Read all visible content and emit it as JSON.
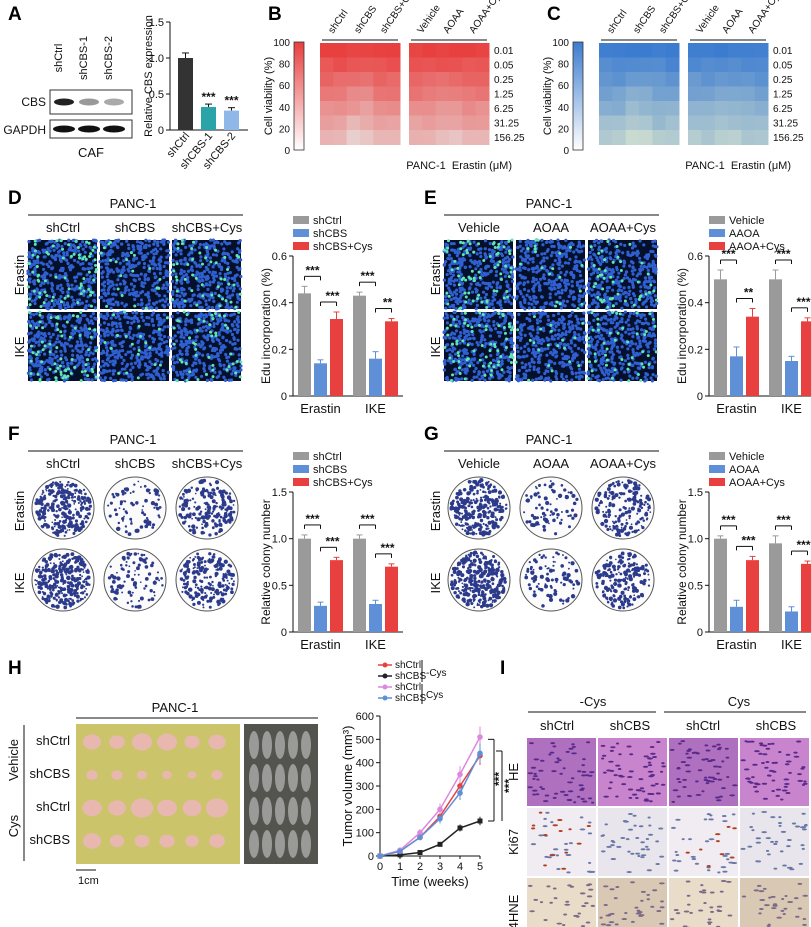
{
  "colors": {
    "ctrl": "#9a9a9a",
    "kd": "#5f8fd6",
    "rescue": "#e8403f",
    "heatRed": "#e8403f",
    "heatBlue": "#3c7cd0",
    "cafCtrl": "#333333",
    "cafKd1": "#2aa4a8",
    "cafKd2": "#8fb8e8",
    "purple": "#dd88dd"
  },
  "panelA": {
    "label": "A",
    "rows": [
      "CBS",
      "GAPDH"
    ],
    "lanes": [
      "shCtrl",
      "shCBS-1",
      "shCBS-2"
    ],
    "caption": "CAF",
    "chart_data": {
      "type": "bar",
      "ylabel": "Relative CBS expression",
      "ylim": [
        0,
        1.5
      ],
      "yticks": [
        "0",
        "0.5",
        "1.0",
        "1.5"
      ],
      "categories": [
        "shCtrl",
        "shCBS-1",
        "shCBS-2"
      ],
      "values": [
        1.0,
        0.32,
        0.27
      ],
      "errors": [
        0.07,
        0.04,
        0.04
      ],
      "stars": [
        "",
        "***",
        "***"
      ]
    }
  },
  "panelB": {
    "label": "B",
    "chart_data": {
      "type": "heatmap",
      "groups1": [
        "shCtrl",
        "shCBS",
        "shCBS+Cys"
      ],
      "groups2": [
        "Vehicle",
        "AOAA",
        "AOAA+Cys"
      ],
      "rows": [
        "0.01",
        "0.05",
        "0.25",
        "1.25",
        "6.25",
        "31.25",
        "156.25"
      ],
      "colorbar": [
        "100",
        "80",
        "60",
        "40",
        "20",
        "0"
      ],
      "ylabel": "Cell viability (%)",
      "cell": "PANC-1",
      "xlabel": "Erastin (μM)",
      "color": "red"
    }
  },
  "panelC": {
    "label": "C",
    "chart_data": {
      "type": "heatmap",
      "groups1": [
        "shCtrl",
        "shCBS",
        "shCBS+Cys"
      ],
      "groups2": [
        "Vehicle",
        "AOAA",
        "AOAA+Cys"
      ],
      "rows": [
        "0.01",
        "0.05",
        "0.25",
        "1.25",
        "6.25",
        "31.25",
        "156.25"
      ],
      "colorbar": [
        "100",
        "80",
        "60",
        "40",
        "20",
        "0"
      ],
      "ylabel": "Cell viability (%)",
      "cell": "PANC-1",
      "xlabel": "Erastin (μM)",
      "color": "blue"
    }
  },
  "panelD": {
    "label": "D",
    "cell": "PANC-1",
    "columns": [
      "shCtrl",
      "shCBS",
      "shCBS+Cys"
    ],
    "rows": [
      "Erastin",
      "IKE"
    ],
    "chart_data": {
      "type": "bar",
      "legend": [
        "shCtrl",
        "shCBS",
        "shCBS+Cys"
      ],
      "ylabel": "Edu incorporation (%)",
      "ylim": [
        0,
        0.6
      ],
      "yticks": [
        "0",
        "0.2",
        "0.4",
        "0.6"
      ],
      "categories": [
        "Erastin",
        "IKE"
      ],
      "series": [
        {
          "name": "shCtrl",
          "values": [
            0.44,
            0.43
          ],
          "errors": [
            0.03,
            0.015
          ]
        },
        {
          "name": "shCBS",
          "values": [
            0.14,
            0.16
          ],
          "errors": [
            0.015,
            0.03
          ]
        },
        {
          "name": "shCBS+Cys",
          "values": [
            0.33,
            0.32
          ],
          "errors": [
            0.03,
            0.012
          ]
        }
      ],
      "stars": [
        [
          "***",
          "***"
        ],
        [
          "***",
          "**"
        ]
      ]
    }
  },
  "panelE": {
    "label": "E",
    "cell": "PANC-1",
    "columns": [
      "Vehicle",
      "AOAA",
      "AOAA+Cys"
    ],
    "rows": [
      "Erastin",
      "IKE"
    ],
    "chart_data": {
      "type": "bar",
      "legend": [
        "Vehicle",
        "AAOA",
        "AAOA+Cys"
      ],
      "ylabel": "Edu incorporation (%)",
      "ylim": [
        0,
        0.6
      ],
      "yticks": [
        "0",
        "0.2",
        "0.4",
        "0.6"
      ],
      "categories": [
        "Erastin",
        "IKE"
      ],
      "series": [
        {
          "name": "Vehicle",
          "values": [
            0.5,
            0.5
          ],
          "errors": [
            0.04,
            0.04
          ]
        },
        {
          "name": "AAOA",
          "values": [
            0.17,
            0.15
          ],
          "errors": [
            0.04,
            0.02
          ]
        },
        {
          "name": "AAOA+Cys",
          "values": [
            0.34,
            0.32
          ],
          "errors": [
            0.035,
            0.015
          ]
        }
      ],
      "stars": [
        [
          "***",
          "**"
        ],
        [
          "***",
          "***"
        ]
      ]
    }
  },
  "panelF": {
    "label": "F",
    "cell": "PANC-1",
    "columns": [
      "shCtrl",
      "shCBS",
      "shCBS+Cys"
    ],
    "rows": [
      "Erastin",
      "IKE"
    ],
    "chart_data": {
      "type": "bar",
      "legend": [
        "shCtrl",
        "shCBS",
        "shCBS+Cys"
      ],
      "ylabel": "Relative colony number",
      "ylim": [
        0,
        1.5
      ],
      "yticks": [
        "0",
        "0.5",
        "1.0",
        "1.5"
      ],
      "categories": [
        "Erastin",
        "IKE"
      ],
      "series": [
        {
          "name": "shCtrl",
          "values": [
            1.0,
            1.0
          ],
          "errors": [
            0.04,
            0.04
          ]
        },
        {
          "name": "shCBS",
          "values": [
            0.28,
            0.3
          ],
          "errors": [
            0.04,
            0.04
          ]
        },
        {
          "name": "shCBS+Cys",
          "values": [
            0.77,
            0.7
          ],
          "errors": [
            0.03,
            0.03
          ]
        }
      ],
      "stars": [
        [
          "***",
          "***"
        ],
        [
          "***",
          "***"
        ]
      ]
    }
  },
  "panelG": {
    "label": "G",
    "cell": "PANC-1",
    "columns": [
      "Vehicle",
      "AOAA",
      "AOAA+Cys"
    ],
    "rows": [
      "Erastin",
      "IKE"
    ],
    "chart_data": {
      "type": "bar",
      "legend": [
        "Vehicle",
        "AOAA",
        "AOAA+Cys"
      ],
      "ylabel": "Relative colony number",
      "ylim": [
        0,
        1.5
      ],
      "yticks": [
        "0",
        "0.5",
        "1.0",
        "1.5"
      ],
      "categories": [
        "Erastin",
        "IKE"
      ],
      "series": [
        {
          "name": "Vehicle",
          "values": [
            1.0,
            0.95
          ],
          "errors": [
            0.03,
            0.08
          ]
        },
        {
          "name": "AOAA",
          "values": [
            0.27,
            0.22
          ],
          "errors": [
            0.07,
            0.05
          ]
        },
        {
          "name": "AOAA+Cys",
          "values": [
            0.77,
            0.73
          ],
          "errors": [
            0.04,
            0.03
          ]
        }
      ],
      "stars": [
        [
          "***",
          "***"
        ],
        [
          "***",
          "***"
        ]
      ]
    }
  },
  "panelH": {
    "label": "H",
    "cell": "PANC-1",
    "groups": [
      "Vehicle",
      "Cys"
    ],
    "rows": [
      "shCtrl",
      "shCBS",
      "shCtrl",
      "shCBS"
    ],
    "scalebar": "1cm",
    "chart_data": {
      "type": "line",
      "xlabel": "Time (weeks)",
      "ylabel": "Tumor volume (mm³)",
      "x": [
        0,
        1,
        2,
        3,
        4,
        5
      ],
      "ylim": [
        0,
        600
      ],
      "yticks": [
        "0",
        "100",
        "200",
        "300",
        "400",
        "500",
        "600"
      ],
      "xticks": [
        "0",
        "1",
        "2",
        "3",
        "4",
        "5"
      ],
      "series": [
        {
          "name": "shCtrl",
          "group": "-Cys",
          "values": [
            0,
            20,
            80,
            170,
            300,
            430
          ],
          "errors": [
            0,
            5,
            12,
            20,
            30,
            40
          ]
        },
        {
          "name": "shCBS",
          "group": "-Cys",
          "values": [
            0,
            5,
            15,
            50,
            120,
            150
          ],
          "errors": [
            0,
            2,
            5,
            8,
            15,
            18
          ]
        },
        {
          "name": "shCtrl",
          "group": "Cys",
          "values": [
            0,
            25,
            100,
            200,
            350,
            510
          ],
          "errors": [
            0,
            6,
            15,
            25,
            35,
            45
          ]
        },
        {
          "name": "shCBS",
          "group": "Cys",
          "values": [
            0,
            20,
            80,
            160,
            270,
            440
          ],
          "errors": [
            0,
            5,
            12,
            20,
            30,
            40
          ]
        }
      ],
      "legend_groups": [
        "-Cys",
        "Cys"
      ],
      "stars": [
        "***",
        "***"
      ]
    }
  },
  "panelI": {
    "label": "I",
    "groups": [
      "-Cys",
      "Cys"
    ],
    "columns": [
      "shCtrl",
      "shCBS",
      "shCtrl",
      "shCBS"
    ],
    "rows": [
      "HE",
      "Ki67",
      "4HNE"
    ]
  }
}
